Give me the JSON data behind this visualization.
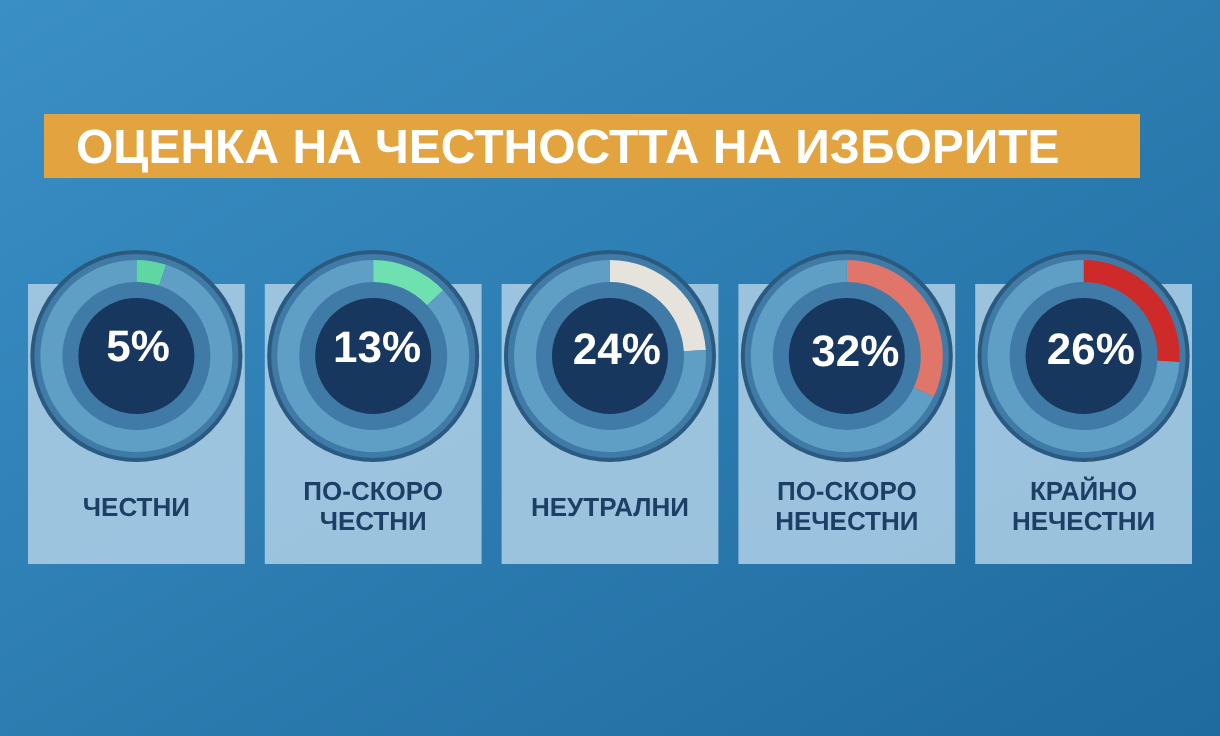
{
  "chart_data": [
    {
      "type": "other",
      "title": "ОЦЕНКА НА ЧЕСТНОСТТА НА ИЗБОРИТЕ"
    },
    {
      "type": "donut",
      "title": "ЧЕСТНИ",
      "categories": [
        null,
        null
      ],
      "values": [
        5,
        95
      ],
      "colors": [
        "#5fd6a4",
        "#5f9fc6"
      ],
      "value_labels": [
        "5%",
        null
      ]
    },
    {
      "type": "donut",
      "title": "ПО-СКОРО ЧЕСТНИ",
      "categories": [
        null,
        null
      ],
      "values": [
        13,
        87
      ],
      "colors": [
        "#6fe0b0",
        "#5f9fc6"
      ],
      "value_labels": [
        "13%",
        null
      ]
    },
    {
      "type": "donut",
      "title": "НЕУТРАЛНИ",
      "categories": [
        null,
        null
      ],
      "values": [
        24,
        76
      ],
      "colors": [
        "#e6e2dc",
        "#5f9fc6"
      ],
      "value_labels": [
        "24%",
        null
      ]
    },
    {
      "type": "donut",
      "title": "ПО-СКОРО НЕЧЕСТНИ",
      "categories": [
        null,
        null
      ],
      "values": [
        32,
        68
      ],
      "colors": [
        "#e0766a",
        "#5f9fc6"
      ],
      "value_labels": [
        "32%",
        null
      ]
    },
    {
      "type": "donut",
      "title": "КРАЙНО НЕЧЕСТНИ",
      "categories": [
        null,
        null
      ],
      "values": [
        26,
        74
      ],
      "colors": [
        "#cf2a2a",
        "#5f9fc6"
      ],
      "value_labels": [
        "26%",
        null
      ]
    }
  ]
}
